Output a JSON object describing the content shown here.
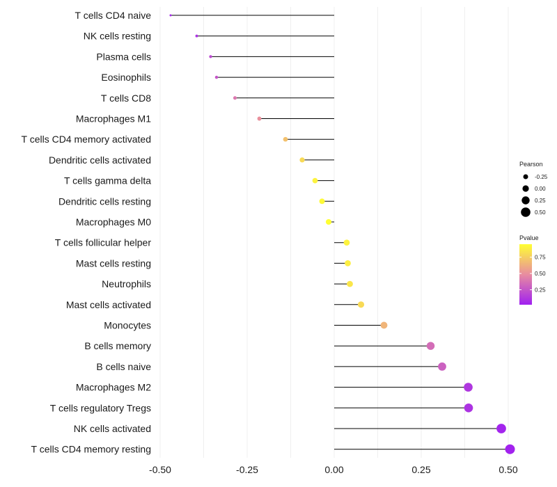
{
  "chart_data": {
    "type": "lollipop",
    "title": "",
    "xlabel": "",
    "ylabel": "",
    "xlim": [
      -0.5,
      0.5
    ],
    "xticks": [
      -0.5,
      -0.25,
      0.0,
      0.25,
      0.5
    ],
    "xtick_labels": [
      "-0.50",
      "-0.25",
      "0.00",
      "0.25",
      "0.50"
    ],
    "grid": true,
    "categories": [
      "T cells CD4 naive",
      "NK cells resting",
      "Plasma cells",
      "Eosinophils",
      "T cells CD8",
      "Macrophages M1",
      "T cells CD4 memory activated",
      "Dendritic cells activated",
      "T cells gamma delta",
      "Dendritic cells resting",
      "Macrophages M0",
      "T cells follicular helper",
      "Mast cells resting",
      "Neutrophils",
      "Mast cells activated",
      "Monocytes",
      "B cells memory",
      "B cells naive",
      "Macrophages M2",
      "T cells regulatory  Tregs",
      "NK cells activated",
      "T cells CD4 memory resting"
    ],
    "pearson": [
      -0.47,
      -0.395,
      -0.355,
      -0.338,
      -0.285,
      -0.215,
      -0.14,
      -0.092,
      -0.055,
      -0.035,
      -0.016,
      0.036,
      0.039,
      0.045,
      0.077,
      0.143,
      0.277,
      0.31,
      0.385,
      0.386,
      0.48,
      0.505
    ],
    "pvalue": [
      0.05,
      0.1,
      0.2,
      0.25,
      0.4,
      0.5,
      0.7,
      0.8,
      0.9,
      0.93,
      0.97,
      0.9,
      0.88,
      0.85,
      0.8,
      0.65,
      0.35,
      0.3,
      0.12,
      0.1,
      0.04,
      0.03
    ],
    "legend_size": {
      "title": "Pearson",
      "values": [
        -0.25,
        0.0,
        0.25,
        0.5
      ],
      "labels": [
        "-0.25",
        "0.00",
        "0.25",
        "0.50"
      ],
      "position": "right"
    },
    "legend_color": {
      "title": "Pvalue",
      "ticks": [
        0.25,
        0.5,
        0.75
      ],
      "labels": [
        "0.25",
        "0.50",
        "0.75"
      ],
      "range": [
        0.02,
        0.95
      ],
      "low_color": "#a020f0",
      "high_color": "#ffff33",
      "position": "right"
    },
    "stem_color": "#000000",
    "grid_color": "#ebebeb"
  }
}
